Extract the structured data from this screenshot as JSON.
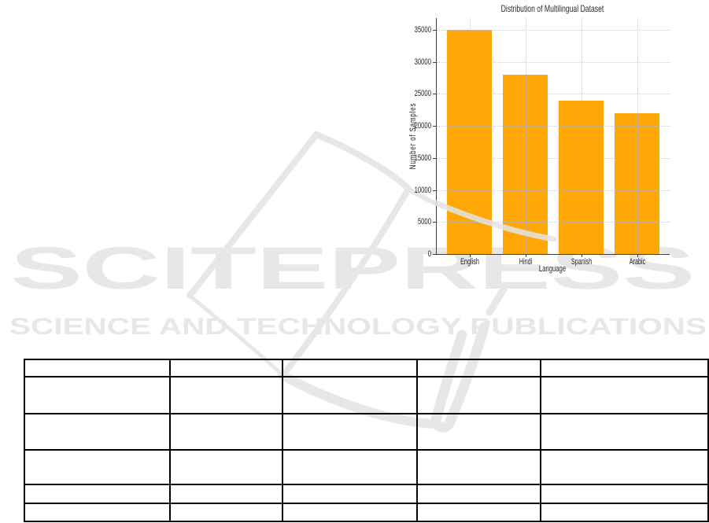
{
  "watermark": {
    "logo_text": "SCITEPRESS",
    "tagline": "SCIENCE AND TECHNOLOGY PUBLICATIONS",
    "color": "#e7e7e7"
  },
  "chart_data": {
    "type": "bar",
    "title": "Distribution of Multilingual Dataset",
    "xlabel": "Language",
    "ylabel": "Number of Samples",
    "categories": [
      "English",
      "Hindi",
      "Spanish",
      "Arabic"
    ],
    "values": [
      35000,
      28000,
      24000,
      22000
    ],
    "yticks": [
      0,
      5000,
      10000,
      15000,
      20000,
      25000,
      30000,
      35000
    ],
    "ylim": [
      0,
      36800
    ],
    "bar_color": "#FFA707",
    "grid": true,
    "legend": "none"
  },
  "table": {
    "rows": 6,
    "cols": 5,
    "cells": [
      [
        "",
        "",
        "",
        "",
        ""
      ],
      [
        "",
        "",
        "",
        "",
        ""
      ],
      [
        "",
        "",
        "",
        "",
        ""
      ],
      [
        "",
        "",
        "",
        "",
        ""
      ],
      [
        "",
        "",
        "",
        "",
        ""
      ],
      [
        "",
        "",
        "",
        "",
        ""
      ]
    ]
  }
}
